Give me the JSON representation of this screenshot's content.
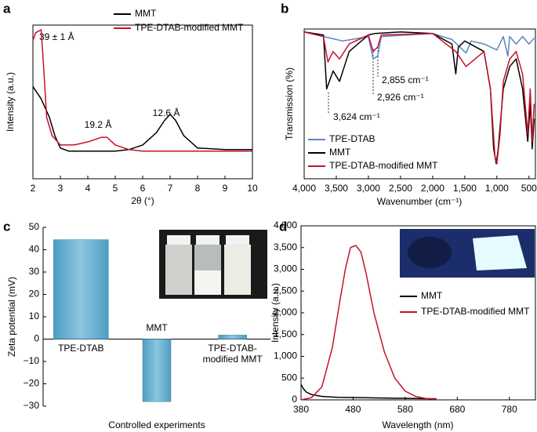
{
  "chart_data": [
    {
      "type": "line",
      "label": "a",
      "xlabel": "2θ (°)",
      "ylabel": "Intensity (a.u.)",
      "xlim": [
        2,
        10
      ],
      "xticks": [
        2,
        3,
        4,
        5,
        6,
        7,
        8,
        9,
        10
      ],
      "ylim": [
        0,
        100
      ],
      "annotations": [
        "39 ± 1 Å",
        "19.2 Å",
        "12.6 Å"
      ],
      "series": [
        {
          "name": "MMT",
          "color": "#000000",
          "x": [
            2,
            2.3,
            2.6,
            2.8,
            3,
            3.3,
            4,
            5,
            5.5,
            6,
            6.5,
            6.8,
            7,
            7.2,
            7.5,
            8,
            9,
            10
          ],
          "values": [
            60,
            52,
            40,
            28,
            20,
            18,
            18,
            18,
            19,
            22,
            30,
            38,
            42,
            38,
            28,
            20,
            19,
            19
          ]
        },
        {
          "name": "TPE-DTAB-modified MMT",
          "color": "#c8102e",
          "x": [
            2,
            2.1,
            2.2,
            2.3,
            2.4,
            2.5,
            2.7,
            3,
            3.5,
            4,
            4.5,
            4.7,
            5,
            5.5,
            6,
            7,
            8,
            9,
            10
          ],
          "values": [
            90,
            95,
            96,
            97,
            70,
            40,
            28,
            22,
            22,
            24,
            27,
            27,
            22,
            19,
            18,
            18,
            18,
            18,
            18
          ]
        }
      ]
    },
    {
      "type": "line",
      "label": "b",
      "xlabel": "Wavenumber (cm⁻¹)",
      "ylabel": "Transmission (%)",
      "xlim": [
        4000,
        400
      ],
      "xticks": [
        {
          "value": 4000,
          "label": "4,000"
        },
        {
          "value": 3500,
          "label": "3,500"
        },
        {
          "value": 3000,
          "label": "3,000"
        },
        {
          "value": 2500,
          "label": "2,500"
        },
        {
          "value": 2000,
          "label": "2,000"
        },
        {
          "value": 1500,
          "label": "1,500"
        },
        {
          "value": 1000,
          "label": "1,000"
        },
        500
      ],
      "ylim": [
        0,
        100
      ],
      "annotations": [
        "2,855 cm⁻¹",
        "2,926 cm⁻¹",
        "3,624 cm⁻¹"
      ],
      "series": [
        {
          "name": "TPE-DTAB",
          "color": "#5b84c4",
          "x": [
            4000,
            3500,
            3400,
            3000,
            2926,
            2855,
            2800,
            2000,
            1700,
            1480,
            1400,
            1200,
            1000,
            900,
            830,
            800,
            700,
            600,
            500,
            420
          ],
          "values": [
            98,
            93,
            92,
            95,
            80,
            82,
            95,
            97,
            93,
            84,
            92,
            90,
            86,
            95,
            82,
            95,
            90,
            95,
            90,
            94
          ]
        },
        {
          "name": "MMT",
          "color": "#000000",
          "x": [
            4000,
            3700,
            3650,
            3550,
            3450,
            3300,
            3000,
            2900,
            2500,
            2000,
            1700,
            1640,
            1600,
            1500,
            1200,
            1100,
            1050,
            1010,
            980,
            900,
            800,
            700,
            600,
            520,
            480,
            450,
            420
          ],
          "values": [
            98,
            96,
            60,
            72,
            65,
            85,
            96,
            97,
            98,
            97,
            90,
            70,
            88,
            92,
            85,
            60,
            20,
            10,
            20,
            60,
            75,
            80,
            60,
            25,
            50,
            20,
            40
          ]
        },
        {
          "name": "TPE-DTAB-modified MMT",
          "color": "#c8102e",
          "x": [
            4000,
            3700,
            3630,
            3550,
            3450,
            3300,
            3000,
            2926,
            2855,
            2800,
            2000,
            1640,
            1480,
            1200,
            1100,
            1030,
            1000,
            950,
            900,
            800,
            700,
            600,
            520,
            480,
            450,
            420
          ],
          "values": [
            98,
            95,
            78,
            85,
            80,
            90,
            96,
            85,
            88,
            96,
            97,
            85,
            75,
            85,
            60,
            15,
            10,
            30,
            65,
            80,
            85,
            70,
            30,
            60,
            25,
            50
          ]
        }
      ]
    },
    {
      "type": "bar",
      "label": "c",
      "xlabel": "Controlled experiments",
      "ylabel": "Zeta potential (mV)",
      "categories": [
        "TPE-DTAB",
        "MMT",
        "TPE-DTAB-modified MMT"
      ],
      "values": [
        44.5,
        -28,
        1.8
      ],
      "color": "#6aaed0",
      "ylim": [
        -30,
        50
      ],
      "yticks": [
        {
          "value": -30,
          "label": "−30"
        },
        {
          "value": -20,
          "label": "−20"
        },
        {
          "value": -10,
          "label": "−10"
        },
        0,
        10,
        20,
        30,
        40,
        50
      ]
    },
    {
      "type": "line",
      "label": "d",
      "xlabel": "Wavelength (nm)",
      "ylabel": "Intensity (a.u.)",
      "xlim": [
        380,
        830
      ],
      "xticks": [
        380,
        480,
        580,
        680,
        780
      ],
      "ylim": [
        0,
        4000
      ],
      "yticks": [
        0,
        500,
        {
          "value": 1000,
          "label": "1,000"
        },
        {
          "value": 1500,
          "label": "1,500"
        },
        {
          "value": 2000,
          "label": "2,000"
        },
        {
          "value": 2500,
          "label": "2,500"
        },
        {
          "value": 3000,
          "label": "3,000"
        },
        {
          "value": 3500,
          "label": "3,500"
        },
        {
          "value": 4000,
          "label": "4,000"
        }
      ],
      "series": [
        {
          "name": "MMT",
          "color": "#000000",
          "x": [
            380,
            385,
            390,
            400,
            420,
            450,
            500,
            600,
            640
          ],
          "values": [
            350,
            250,
            180,
            120,
            80,
            60,
            50,
            30,
            25
          ]
        },
        {
          "name": "TPE-DTAB-modified MMT",
          "color": "#c8102e",
          "x": [
            380,
            400,
            420,
            440,
            455,
            465,
            475,
            485,
            495,
            505,
            520,
            540,
            560,
            580,
            600,
            620,
            640
          ],
          "values": [
            0,
            50,
            300,
            1200,
            2300,
            3000,
            3500,
            3550,
            3400,
            2900,
            2000,
            1100,
            500,
            200,
            80,
            30,
            10
          ]
        }
      ]
    }
  ]
}
